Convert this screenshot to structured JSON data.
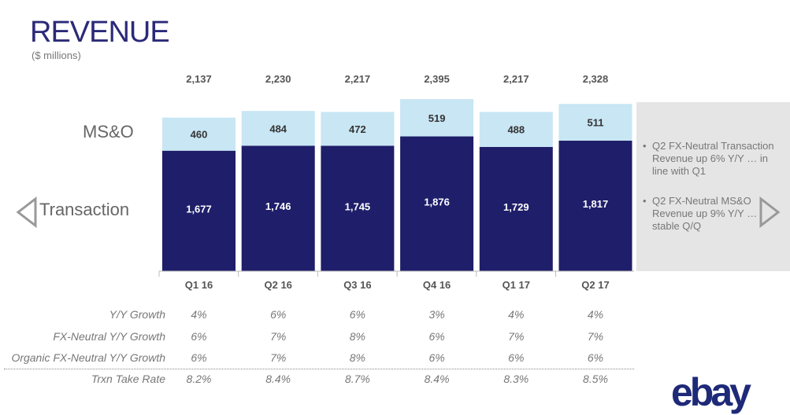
{
  "header": {
    "title": "REVENUE",
    "subtitle": "($ millions)"
  },
  "side_labels": {
    "ms": "MS&O",
    "tx": "Transaction"
  },
  "notes": [
    "Q2 FX-Neutral Transaction Revenue up 6% Y/Y … in line with Q1",
    "Q2 FX-Neutral MS&O Revenue up 9% Y/Y … stable Q/Q"
  ],
  "colors": {
    "transaction": "#1f1e6a",
    "mso": "#c8e6f4",
    "title": "#2b2a78"
  },
  "chart_data": {
    "type": "bar",
    "stacked": true,
    "title": "REVENUE",
    "ylabel": "$ millions",
    "categories": [
      "Q1 16",
      "Q2 16",
      "Q3 16",
      "Q4 16",
      "Q1 17",
      "Q2 17"
    ],
    "series": [
      {
        "name": "Transaction",
        "values": [
          1677,
          1746,
          1745,
          1876,
          1729,
          1817
        ]
      },
      {
        "name": "MS&O",
        "values": [
          460,
          484,
          472,
          519,
          488,
          511
        ]
      }
    ],
    "totals": [
      "2,137",
      "2,230",
      "2,217",
      "2,395",
      "2,217",
      "2,328"
    ],
    "tx_labels": [
      "1,677",
      "1,746",
      "1,745",
      "1,876",
      "1,729",
      "1,817"
    ],
    "ms_labels": [
      "460",
      "484",
      "472",
      "519",
      "488",
      "511"
    ]
  },
  "table": [
    {
      "label": "Y/Y Growth",
      "values": [
        "4%",
        "6%",
        "6%",
        "3%",
        "4%",
        "4%"
      ]
    },
    {
      "label": "FX-Neutral Y/Y Growth",
      "values": [
        "6%",
        "7%",
        "8%",
        "6%",
        "7%",
        "7%"
      ]
    },
    {
      "label": "Organic FX-Neutral Y/Y Growth",
      "values": [
        "6%",
        "7%",
        "8%",
        "6%",
        "6%",
        "6%"
      ]
    },
    {
      "label": "Trxn Take Rate",
      "values": [
        "8.2%",
        "8.4%",
        "8.7%",
        "8.4%",
        "8.3%",
        "8.5%"
      ]
    }
  ],
  "logo": "ebay"
}
